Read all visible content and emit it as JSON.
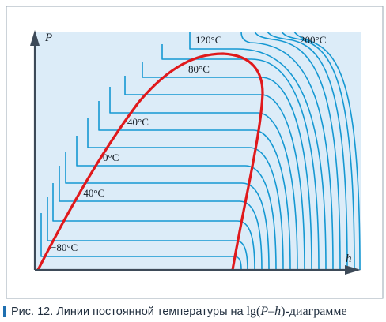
{
  "diagram": {
    "axis_y_label": "P",
    "axis_x_label": "h",
    "isotherm_labels": [
      {
        "text": "−80°C"
      },
      {
        "text": "−40°C"
      },
      {
        "text": "0°C"
      },
      {
        "text": "40°C"
      },
      {
        "text": "80°C"
      },
      {
        "text": "120°C"
      },
      {
        "text": "200°C"
      }
    ],
    "colors": {
      "background": "#dcecf8",
      "isotherm": "#1598d2",
      "saturation_curve": "#e0191c",
      "axis": "#3d4a58",
      "caption_bar": "#1f6fb0"
    }
  },
  "caption": {
    "text": "Рис. 12. Линии постоянной температуры на",
    "formula_prefix": "lg(",
    "formula_p": "P",
    "formula_dash": "–",
    "formula_h": "h",
    "formula_suffix": ")-диаграмме"
  }
}
